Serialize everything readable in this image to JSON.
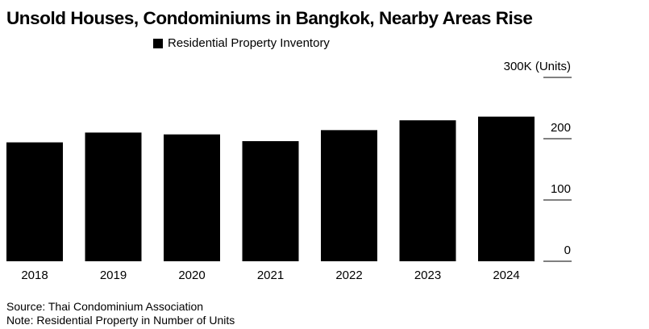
{
  "chart_data": {
    "type": "bar",
    "title": "Unsold Houses, Condominiums in Bangkok, Nearby Areas Rise",
    "legend": "Residential Property Inventory",
    "categories": [
      "2018",
      "2019",
      "2020",
      "2021",
      "2022",
      "2023",
      "2024"
    ],
    "series": [
      {
        "name": "Residential Property Inventory",
        "values": [
          194,
          210,
          207,
          196,
          214,
          230,
          236
        ]
      }
    ],
    "ylim": [
      0,
      300
    ],
    "yticks": [
      {
        "value": 0,
        "label": "0"
      },
      {
        "value": 100,
        "label": "100"
      },
      {
        "value": 200,
        "label": "200"
      },
      {
        "value": 300,
        "label": "300K (Units)"
      }
    ],
    "grid": false,
    "legend_position": "top",
    "bar_color": "#000000"
  },
  "footer": {
    "source": "Source: Thai Condominium Association",
    "note": "Note: Residential Property in Number of Units"
  }
}
